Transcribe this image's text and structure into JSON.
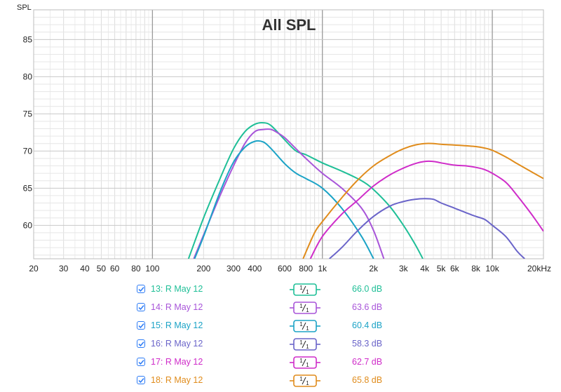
{
  "chart_data": {
    "type": "line",
    "title": "All SPL",
    "ylabel": "SPL",
    "x_scale": "log",
    "xlim": [
      20,
      20000
    ],
    "ylim": [
      55.5,
      89
    ],
    "y_ticks": [
      60,
      65,
      70,
      75,
      80,
      85
    ],
    "y_tick_labels": [
      "60",
      "65",
      "70",
      "75",
      "80",
      "85"
    ],
    "x_ticks": [
      20,
      30,
      40,
      50,
      60,
      80,
      100,
      200,
      300,
      400,
      600,
      800,
      1000,
      2000,
      3000,
      4000,
      5000,
      6000,
      8000,
      10000,
      20000
    ],
    "x_tick_labels": [
      "20",
      "30",
      "40",
      "50",
      "60",
      "80",
      "100",
      "200",
      "300",
      "400",
      "600",
      "800",
      "1k",
      "2k",
      "3k",
      "4k",
      "5k",
      "6k",
      "8k",
      "10k",
      "20kHz"
    ],
    "grid": true,
    "series": [
      {
        "name": "13: R May 12",
        "color": "#1fbf97",
        "smoothing": "1/1",
        "value_label": "66.0 dB",
        "x": [
          163,
          200,
          250,
          300,
          350,
          400,
          450,
          500,
          600,
          700,
          800,
          1000,
          1300,
          1700,
          2000,
          2500,
          3000,
          3500,
          3900
        ],
        "y": [
          55.5,
          61.0,
          66.3,
          70.3,
          72.6,
          73.6,
          73.8,
          73.4,
          71.5,
          70.0,
          69.5,
          68.4,
          67.3,
          66.0,
          64.8,
          62.5,
          60.0,
          57.5,
          55.5
        ]
      },
      {
        "name": "14: R May 12",
        "color": "#a855d9",
        "smoothing": "1/1",
        "value_label": "63.6 dB",
        "x": [
          175,
          200,
          250,
          300,
          350,
          400,
          450,
          500,
          550,
          600,
          700,
          800,
          1000,
          1300,
          1700,
          2000,
          2300
        ],
        "y": [
          55.5,
          58.7,
          64.0,
          68.0,
          71.0,
          72.6,
          72.9,
          72.9,
          72.4,
          71.8,
          70.3,
          69.0,
          67.0,
          65.0,
          62.3,
          59.3,
          55.5
        ]
      },
      {
        "name": "15: R May 12",
        "color": "#1ba3c6",
        "smoothing": "1/1",
        "value_label": "60.4 dB",
        "x": [
          177,
          200,
          250,
          300,
          350,
          400,
          450,
          500,
          600,
          700,
          800,
          1000,
          1300,
          1700,
          2000
        ],
        "y": [
          55.5,
          58.5,
          64.5,
          68.5,
          70.5,
          71.3,
          71.2,
          70.3,
          68.3,
          67.0,
          66.3,
          65.0,
          62.3,
          58.5,
          55.5
        ]
      },
      {
        "name": "16: R May 12",
        "color": "#6a64c9",
        "smoothing": "1/1",
        "value_label": "58.3 dB",
        "x": [
          1100,
          1300,
          1600,
          2000,
          2500,
          3000,
          3500,
          4000,
          4500,
          5000,
          6000,
          7000,
          8000,
          9000,
          10000,
          12000,
          14000,
          15500
        ],
        "y": [
          55.5,
          57.0,
          59.2,
          61.2,
          62.6,
          63.2,
          63.5,
          63.6,
          63.5,
          63.0,
          62.3,
          61.7,
          61.2,
          60.8,
          60.0,
          58.5,
          56.5,
          55.5
        ]
      },
      {
        "name": "17: R May 12",
        "color": "#cf2cc9",
        "smoothing": "1/1",
        "value_label": "62.7 dB",
        "x": [
          850,
          1000,
          1300,
          1600,
          2000,
          2500,
          3000,
          3500,
          4000,
          4500,
          5000,
          6000,
          7000,
          8000,
          9000,
          10000,
          12000,
          14000,
          17000,
          20000
        ],
        "y": [
          55.5,
          58.5,
          61.5,
          63.3,
          65.3,
          66.8,
          67.7,
          68.3,
          68.6,
          68.6,
          68.4,
          68.1,
          68.0,
          67.8,
          67.5,
          67.0,
          65.8,
          64.0,
          61.5,
          59.2
        ]
      },
      {
        "name": "18: R May 12",
        "color": "#e08c1c",
        "smoothing": "1/1",
        "value_label": "65.8 dB",
        "x": [
          770,
          900,
          1000,
          1300,
          1600,
          2000,
          2500,
          3000,
          3500,
          4000,
          4500,
          5000,
          6000,
          7000,
          8000,
          9000,
          10000,
          12000,
          14000,
          17000,
          20000
        ],
        "y": [
          55.5,
          59.0,
          60.5,
          63.7,
          66.0,
          68.0,
          69.4,
          70.3,
          70.8,
          71.0,
          71.0,
          70.9,
          70.8,
          70.7,
          70.6,
          70.4,
          70.1,
          69.2,
          68.3,
          67.2,
          66.3
        ]
      }
    ]
  }
}
